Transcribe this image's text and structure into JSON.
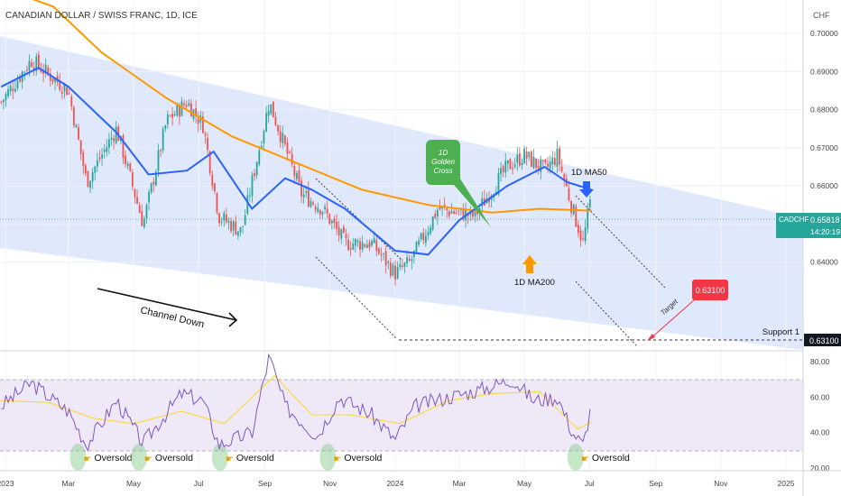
{
  "header": {
    "symbol_title": "CANADIAN DOLLAR / SWISS FRANC, 1D, ICE"
  },
  "price_axis": {
    "currency": "CHF",
    "ticks": [
      "0.70000",
      "0.69000",
      "0.68000",
      "0.67000",
      "0.66000",
      "0.65000",
      "0.64000"
    ],
    "ylim": [
      0.63,
      0.703
    ]
  },
  "price_tag": {
    "symbol": "CADCHF",
    "price": "0.65818",
    "countdown": "14:20:19",
    "value": 0.65818
  },
  "support_tag": {
    "label": "Support 1",
    "price": "0.63100",
    "value": 0.631
  },
  "target_tag": {
    "price": "0.63100"
  },
  "rsi_axis": {
    "ticks": [
      "80.00",
      "60.00",
      "40.00",
      "20.00"
    ],
    "ylim": [
      20,
      85
    ]
  },
  "time_axis": {
    "labels": [
      "2023",
      "Mar",
      "May",
      "Jul",
      "Sep",
      "Nov",
      "2024",
      "Mar",
      "May",
      "Jul",
      "Sep",
      "Nov",
      "2025"
    ],
    "dates": [
      "2023-01-01",
      "2023-03-01",
      "2023-05-01",
      "2023-07-01",
      "2023-09-01",
      "2023-11-01",
      "2024-01-01",
      "2024-03-01",
      "2024-05-01",
      "2024-07-01",
      "2024-09-01",
      "2024-11-01",
      "2025-01-01"
    ]
  },
  "annotations": {
    "channel_down": "Channel Down",
    "golden_cross": "1D\nGolden\nCross",
    "ma50": "1D MA50",
    "ma200": "1D MA200",
    "target": "Target",
    "oversold": "Oversold"
  },
  "colors": {
    "up": "#26a69a",
    "down": "#ef5350",
    "ma50": "#2962ff",
    "ma200": "#ff9800",
    "rsi": "#7e57c2",
    "rsi_ma": "#fdd835",
    "channel": "#dbe4fb",
    "golden": "#4caf50",
    "target": "#f23645"
  },
  "chart_data": {
    "type": "candlestick",
    "title": "CANADIAN DOLLAR / SWISS FRANC, 1D, ICE",
    "price_path": {
      "dates": [
        "2022-12-28",
        "2023-01-25",
        "2023-03-01",
        "2023-03-18",
        "2023-04-15",
        "2023-05-10",
        "2023-06-01",
        "2023-06-20",
        "2023-07-05",
        "2023-07-20",
        "2023-08-10",
        "2023-09-05",
        "2023-09-20",
        "2023-10-05",
        "2023-10-25",
        "2023-11-15",
        "2023-12-10",
        "2024-01-01",
        "2024-01-15",
        "2024-02-10",
        "2024-03-15",
        "2024-04-15",
        "2024-05-01",
        "2024-05-20",
        "2024-06-01",
        "2024-06-15",
        "2024-06-25",
        "2024-07-03"
      ],
      "close": [
        0.682,
        0.693,
        0.685,
        0.661,
        0.675,
        0.65,
        0.677,
        0.682,
        0.676,
        0.652,
        0.648,
        0.682,
        0.67,
        0.658,
        0.654,
        0.645,
        0.645,
        0.637,
        0.64,
        0.654,
        0.652,
        0.665,
        0.668,
        0.664,
        0.668,
        0.654,
        0.645,
        0.658
      ]
    },
    "ma50": {
      "dates": [
        "2022-12-28",
        "2023-02-01",
        "2023-03-01",
        "2023-04-15",
        "2023-05-15",
        "2023-06-20",
        "2023-07-15",
        "2023-08-20",
        "2023-09-20",
        "2023-10-15",
        "2023-11-15",
        "2024-01-01",
        "2024-02-01",
        "2024-03-01",
        "2024-04-15",
        "2024-05-20",
        "2024-06-10",
        "2024-07-03"
      ],
      "values": [
        0.686,
        0.691,
        0.686,
        0.674,
        0.663,
        0.664,
        0.669,
        0.654,
        0.662,
        0.659,
        0.654,
        0.643,
        0.642,
        0.651,
        0.66,
        0.665,
        0.661,
        0.659
      ]
    },
    "ma200": {
      "dates": [
        "2022-12-28",
        "2023-02-15",
        "2023-04-01",
        "2023-06-01",
        "2023-08-01",
        "2023-10-01",
        "2023-12-01",
        "2024-02-01",
        "2024-04-01",
        "2024-05-15",
        "2024-07-03"
      ],
      "values": [
        0.712,
        0.707,
        0.695,
        0.683,
        0.673,
        0.666,
        0.659,
        0.655,
        0.653,
        0.654,
        0.6535
      ]
    },
    "rsi": {
      "dates": [
        "2022-12-28",
        "2023-01-25",
        "2023-03-01",
        "2023-03-18",
        "2023-04-15",
        "2023-05-10",
        "2023-06-15",
        "2023-07-05",
        "2023-07-20",
        "2023-08-20",
        "2023-09-05",
        "2023-09-20",
        "2023-10-20",
        "2023-11-10",
        "2023-12-10",
        "2024-01-01",
        "2024-01-20",
        "2024-02-20",
        "2024-03-20",
        "2024-04-20",
        "2024-05-10",
        "2024-06-01",
        "2024-06-15",
        "2024-06-25",
        "2024-07-03"
      ],
      "values": [
        55,
        68,
        52,
        33,
        58,
        34,
        62,
        58,
        33,
        40,
        83,
        55,
        38,
        60,
        50,
        36,
        55,
        60,
        64,
        70,
        58,
        60,
        40,
        33,
        56
      ]
    },
    "rsi_ma": {
      "dates": [
        "2022-12-28",
        "2023-02-10",
        "2023-03-25",
        "2023-05-01",
        "2023-06-15",
        "2023-07-25",
        "2023-09-10",
        "2023-10-15",
        "2023-11-20",
        "2024-01-05",
        "2024-02-20",
        "2024-04-01",
        "2024-05-15",
        "2024-06-20",
        "2024-07-03"
      ],
      "values": [
        58,
        57,
        48,
        45,
        52,
        45,
        72,
        50,
        50,
        45,
        58,
        62,
        63,
        42,
        46
      ]
    },
    "rsi_levels": [
      30,
      70
    ],
    "ylim": [
      0.63,
      0.703
    ]
  }
}
